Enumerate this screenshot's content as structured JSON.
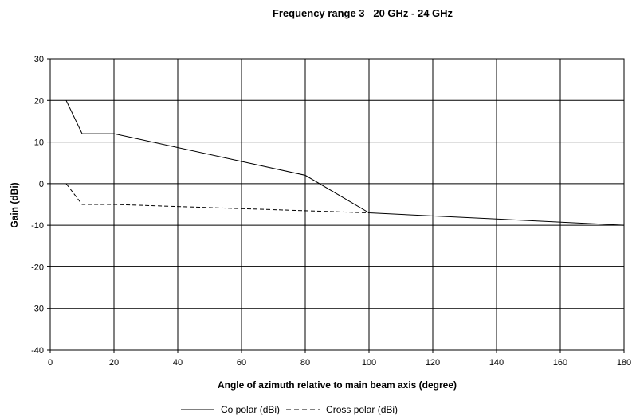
{
  "chart_data": {
    "type": "line",
    "title": "Frequency range 3   20 GHz - 24 GHz",
    "xlabel": "Angle of azimuth relative to main beam axis (degree)",
    "ylabel": "Gain (dBi)",
    "xlim": [
      0,
      180
    ],
    "ylim": [
      -40,
      30
    ],
    "xticks": [
      0,
      20,
      40,
      60,
      80,
      100,
      120,
      140,
      160,
      180
    ],
    "yticks": [
      30,
      20,
      10,
      0,
      -10,
      -20,
      -30,
      -40
    ],
    "grid": true,
    "legend_position": "bottom",
    "series": [
      {
        "name": "Co polar (dBi)",
        "style": "solid",
        "color": "#000000",
        "points": [
          [
            5,
            20
          ],
          [
            10,
            12
          ],
          [
            20,
            12
          ],
          [
            80,
            2
          ],
          [
            100,
            -7
          ],
          [
            180,
            -10
          ]
        ]
      },
      {
        "name": "Cross polar (dBi)",
        "style": "dashed",
        "color": "#000000",
        "points": [
          [
            5,
            0
          ],
          [
            10,
            -5
          ],
          [
            20,
            -5
          ],
          [
            100,
            -7
          ]
        ]
      }
    ]
  }
}
